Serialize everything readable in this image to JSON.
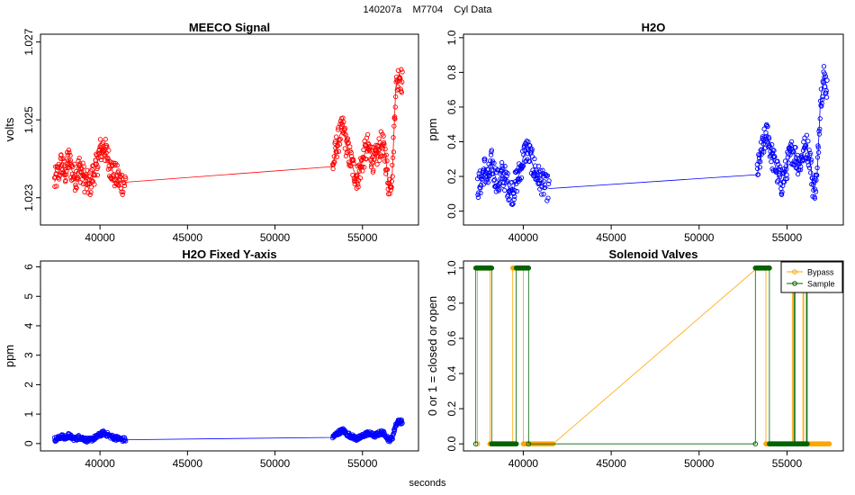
{
  "figure": {
    "title": "140207a    M7704    Cyl Data",
    "xlabel": "seconds"
  },
  "chart_data": [
    {
      "type": "line",
      "title": "MEECO Signal",
      "xlabel": "",
      "ylabel": "volts",
      "xlim": [
        36600,
        58200
      ],
      "ylim": [
        1.0223,
        1.0272
      ],
      "xticks": [
        40000,
        45000,
        50000,
        55000
      ],
      "yticks": [
        1.023,
        1.025,
        1.027
      ],
      "ytick_labels": [
        "1.023",
        "1.025",
        "1.027"
      ],
      "series": [
        {
          "color": "#ff0000",
          "points": [
            [
              37400,
              1.0234
            ],
            [
              37600,
              1.0236
            ],
            [
              37800,
              1.0239
            ],
            [
              38000,
              1.0236
            ],
            [
              38200,
              1.024
            ],
            [
              38400,
              1.0237
            ],
            [
              38600,
              1.0235
            ],
            [
              38800,
              1.0238
            ],
            [
              39000,
              1.0236
            ],
            [
              39200,
              1.0234
            ],
            [
              39400,
              1.0233
            ],
            [
              39600,
              1.0236
            ],
            [
              39800,
              1.0238
            ],
            [
              40000,
              1.0242
            ],
            [
              40200,
              1.0243
            ],
            [
              40400,
              1.0241
            ],
            [
              40600,
              1.0238
            ],
            [
              40800,
              1.0236
            ],
            [
              41000,
              1.0235
            ],
            [
              41200,
              1.0234
            ],
            [
              41500,
              1.0234
            ],
            [
              53300,
              1.0238
            ],
            [
              53500,
              1.0243
            ],
            [
              53700,
              1.0246
            ],
            [
              53900,
              1.0248
            ],
            [
              54100,
              1.0243
            ],
            [
              54300,
              1.024
            ],
            [
              54500,
              1.0237
            ],
            [
              54700,
              1.0235
            ],
            [
              54900,
              1.0238
            ],
            [
              55100,
              1.0241
            ],
            [
              55300,
              1.0243
            ],
            [
              55500,
              1.0241
            ],
            [
              55700,
              1.0239
            ],
            [
              55900,
              1.0242
            ],
            [
              56100,
              1.0244
            ],
            [
              56300,
              1.0241
            ],
            [
              56500,
              1.0233
            ],
            [
              56700,
              1.0236
            ],
            [
              56900,
              1.0258
            ],
            [
              57100,
              1.0262
            ],
            [
              57300,
              1.0259
            ]
          ]
        }
      ]
    },
    {
      "type": "line",
      "title": "H2O",
      "xlabel": "",
      "ylabel": "ppm",
      "xlim": [
        36600,
        58200
      ],
      "ylim": [
        -0.08,
        1.02
      ],
      "xticks": [
        40000,
        45000,
        50000,
        55000
      ],
      "yticks": [
        0.0,
        0.2,
        0.4,
        0.6,
        0.8,
        1.0
      ],
      "ytick_labels": [
        "0.0",
        "0.2",
        "0.4",
        "0.6",
        "0.8",
        "1.0"
      ],
      "series": [
        {
          "color": "#0000ff",
          "points": [
            [
              37400,
              0.14
            ],
            [
              37600,
              0.17
            ],
            [
              37800,
              0.25
            ],
            [
              38000,
              0.18
            ],
            [
              38200,
              0.28
            ],
            [
              38400,
              0.2
            ],
            [
              38600,
              0.16
            ],
            [
              38800,
              0.22
            ],
            [
              39000,
              0.18
            ],
            [
              39200,
              0.13
            ],
            [
              39400,
              0.11
            ],
            [
              39600,
              0.17
            ],
            [
              39800,
              0.22
            ],
            [
              40000,
              0.31
            ],
            [
              40200,
              0.36
            ],
            [
              40400,
              0.31
            ],
            [
              40600,
              0.25
            ],
            [
              40800,
              0.2
            ],
            [
              41000,
              0.18
            ],
            [
              41200,
              0.14
            ],
            [
              41500,
              0.13
            ],
            [
              53300,
              0.21
            ],
            [
              53500,
              0.32
            ],
            [
              53700,
              0.4
            ],
            [
              53900,
              0.45
            ],
            [
              54100,
              0.33
            ],
            [
              54300,
              0.27
            ],
            [
              54500,
              0.21
            ],
            [
              54700,
              0.16
            ],
            [
              54900,
              0.22
            ],
            [
              55100,
              0.3
            ],
            [
              55300,
              0.35
            ],
            [
              55500,
              0.31
            ],
            [
              55700,
              0.27
            ],
            [
              55900,
              0.33
            ],
            [
              56100,
              0.38
            ],
            [
              56300,
              0.31
            ],
            [
              56500,
              0.12
            ],
            [
              56700,
              0.18
            ],
            [
              56900,
              0.64
            ],
            [
              57100,
              0.78
            ],
            [
              57300,
              0.7
            ]
          ]
        }
      ]
    },
    {
      "type": "line",
      "title": "H2O Fixed Y-axis",
      "xlabel": "",
      "ylabel": "ppm",
      "xlim": [
        36600,
        58200
      ],
      "ylim": [
        -0.25,
        6.2
      ],
      "xticks": [
        40000,
        45000,
        50000,
        55000
      ],
      "yticks": [
        0,
        1,
        2,
        3,
        4,
        5,
        6
      ],
      "ytick_labels": [
        "0",
        "1",
        "2",
        "3",
        "4",
        "5",
        "6"
      ],
      "series": [
        {
          "color": "#0000ff",
          "points": [
            [
              37400,
              0.14
            ],
            [
              37600,
              0.17
            ],
            [
              37800,
              0.25
            ],
            [
              38000,
              0.18
            ],
            [
              38200,
              0.28
            ],
            [
              38400,
              0.2
            ],
            [
              38600,
              0.16
            ],
            [
              38800,
              0.22
            ],
            [
              39000,
              0.18
            ],
            [
              39200,
              0.13
            ],
            [
              39400,
              0.11
            ],
            [
              39600,
              0.17
            ],
            [
              39800,
              0.22
            ],
            [
              40000,
              0.31
            ],
            [
              40200,
              0.36
            ],
            [
              40400,
              0.31
            ],
            [
              40600,
              0.25
            ],
            [
              40800,
              0.2
            ],
            [
              41000,
              0.18
            ],
            [
              41200,
              0.14
            ],
            [
              41500,
              0.13
            ],
            [
              53300,
              0.21
            ],
            [
              53500,
              0.32
            ],
            [
              53700,
              0.4
            ],
            [
              53900,
              0.45
            ],
            [
              54100,
              0.33
            ],
            [
              54300,
              0.27
            ],
            [
              54500,
              0.21
            ],
            [
              54700,
              0.16
            ],
            [
              54900,
              0.22
            ],
            [
              55100,
              0.3
            ],
            [
              55300,
              0.35
            ],
            [
              55500,
              0.31
            ],
            [
              55700,
              0.27
            ],
            [
              55900,
              0.33
            ],
            [
              56100,
              0.38
            ],
            [
              56300,
              0.31
            ],
            [
              56500,
              0.12
            ],
            [
              56700,
              0.18
            ],
            [
              56900,
              0.64
            ],
            [
              57100,
              0.78
            ],
            [
              57300,
              0.7
            ]
          ]
        }
      ]
    },
    {
      "type": "line",
      "title": "Solenoid Valves",
      "xlabel": "",
      "ylabel": "0 or 1 = closed or open",
      "xlim": [
        36600,
        58200
      ],
      "ylim": [
        -0.04,
        1.04
      ],
      "xticks": [
        40000,
        45000,
        50000,
        55000
      ],
      "yticks": [
        0.0,
        0.2,
        0.4,
        0.6,
        0.8,
        1.0
      ],
      "ytick_labels": [
        "0.0",
        "0.2",
        "0.4",
        "0.6",
        "0.8",
        "1.0"
      ],
      "legend": "top-right",
      "series": [
        {
          "name": "Bypass",
          "color": "#ffa500",
          "points": [
            [
              37400,
              0
            ],
            [
              37400,
              1
            ],
            [
              38100,
              1
            ],
            [
              38100,
              0
            ],
            [
              39400,
              0
            ],
            [
              39400,
              1
            ],
            [
              40000,
              1
            ],
            [
              40000,
              0
            ],
            [
              41700,
              0
            ],
            [
              53300,
              1
            ],
            [
              53800,
              1
            ],
            [
              53800,
              0
            ],
            [
              55300,
              0
            ],
            [
              55300,
              1
            ],
            [
              55350,
              1
            ],
            [
              55350,
              0
            ],
            [
              55900,
              0
            ],
            [
              55900,
              1
            ],
            [
              55950,
              1
            ],
            [
              55950,
              0
            ],
            [
              57400,
              0
            ]
          ]
        },
        {
          "name": "Sample",
          "color": "#006400",
          "points": [
            [
              37300,
              0
            ],
            [
              37300,
              1
            ],
            [
              38200,
              1
            ],
            [
              38200,
              0
            ],
            [
              39600,
              0
            ],
            [
              39600,
              1
            ],
            [
              40300,
              1
            ],
            [
              40300,
              0
            ],
            [
              53200,
              0
            ],
            [
              53200,
              1
            ],
            [
              54000,
              1
            ],
            [
              54000,
              0
            ],
            [
              55400,
              0
            ],
            [
              55400,
              1
            ],
            [
              55450,
              1
            ],
            [
              55450,
              0
            ],
            [
              56100,
              0
            ],
            [
              56100,
              1
            ],
            [
              56150,
              1
            ],
            [
              56150,
              0
            ]
          ]
        }
      ]
    }
  ]
}
